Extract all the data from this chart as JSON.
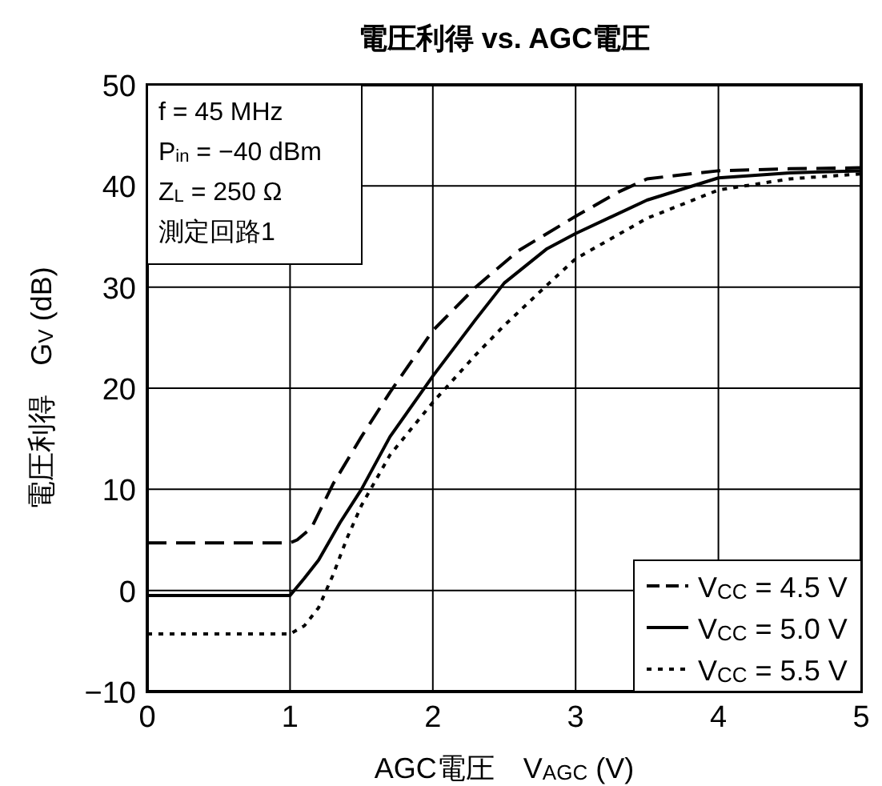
{
  "chart_data": {
    "type": "line",
    "title": "電圧利得 vs. AGC電圧",
    "xlabel": "AGC電圧　V$_{AGC}$ (V)",
    "ylabel": "電圧利得　G$_{V}$ (dB)",
    "xlim": [
      0,
      5
    ],
    "xticks": [
      0,
      1,
      2,
      3,
      4,
      5
    ],
    "ylim": [
      -10,
      50
    ],
    "yticks": [
      {
        "value": -10,
        "label": "−10"
      },
      0,
      10,
      20,
      30,
      40,
      50
    ],
    "grid": true,
    "legend": "bottom right",
    "annotations": [
      "f = 45 MHz",
      "P$_{in}$ = −40 dBm",
      "Z$_{L}$ = 250 Ω",
      "測定回路1"
    ],
    "series": [
      {
        "name": "V$_{CC}$ = 4.5 V",
        "color": "#000000",
        "line_style": "dashed",
        "x": [
          0,
          1.0,
          1.05,
          1.15,
          1.3,
          1.5,
          1.7,
          2.0,
          2.3,
          2.6,
          3.0,
          3.3,
          3.5,
          3.8,
          4.0,
          4.5,
          5.0
        ],
        "values": [
          4.7,
          4.7,
          5.0,
          6.2,
          10.5,
          15.2,
          19.6,
          25.7,
          30,
          33.6,
          37,
          39.4,
          40.7,
          41.2,
          41.5,
          41.7,
          41.8
        ]
      },
      {
        "name": "V$_{CC}$ = 5.0 V",
        "color": "#000000",
        "line_style": "solid",
        "x": [
          0,
          1.0,
          1.1,
          1.2,
          1.35,
          1.5,
          1.7,
          2.0,
          2.3,
          2.5,
          2.8,
          3.0,
          3.5,
          4.0,
          4.5,
          5.0
        ],
        "values": [
          -0.5,
          -0.5,
          1.2,
          3,
          6.7,
          10,
          15.2,
          21.2,
          26.8,
          30.4,
          33.8,
          35.3,
          38.6,
          40.8,
          41.3,
          41.5
        ]
      },
      {
        "name": "V$_{CC}$ = 5.5 V",
        "color": "#000000",
        "line_style": "dotted",
        "x": [
          0,
          1.0,
          1.1,
          1.2,
          1.3,
          1.4,
          1.5,
          1.7,
          2.0,
          2.3,
          2.5,
          2.8,
          3.0,
          3.5,
          4.0,
          4.5,
          5.0
        ],
        "values": [
          -4.3,
          -4.3,
          -3.5,
          -1.7,
          1.5,
          5.2,
          8.4,
          13.4,
          18.6,
          23.3,
          26.2,
          30.2,
          32.8,
          36.8,
          39.6,
          40.7,
          41.2
        ]
      }
    ]
  }
}
